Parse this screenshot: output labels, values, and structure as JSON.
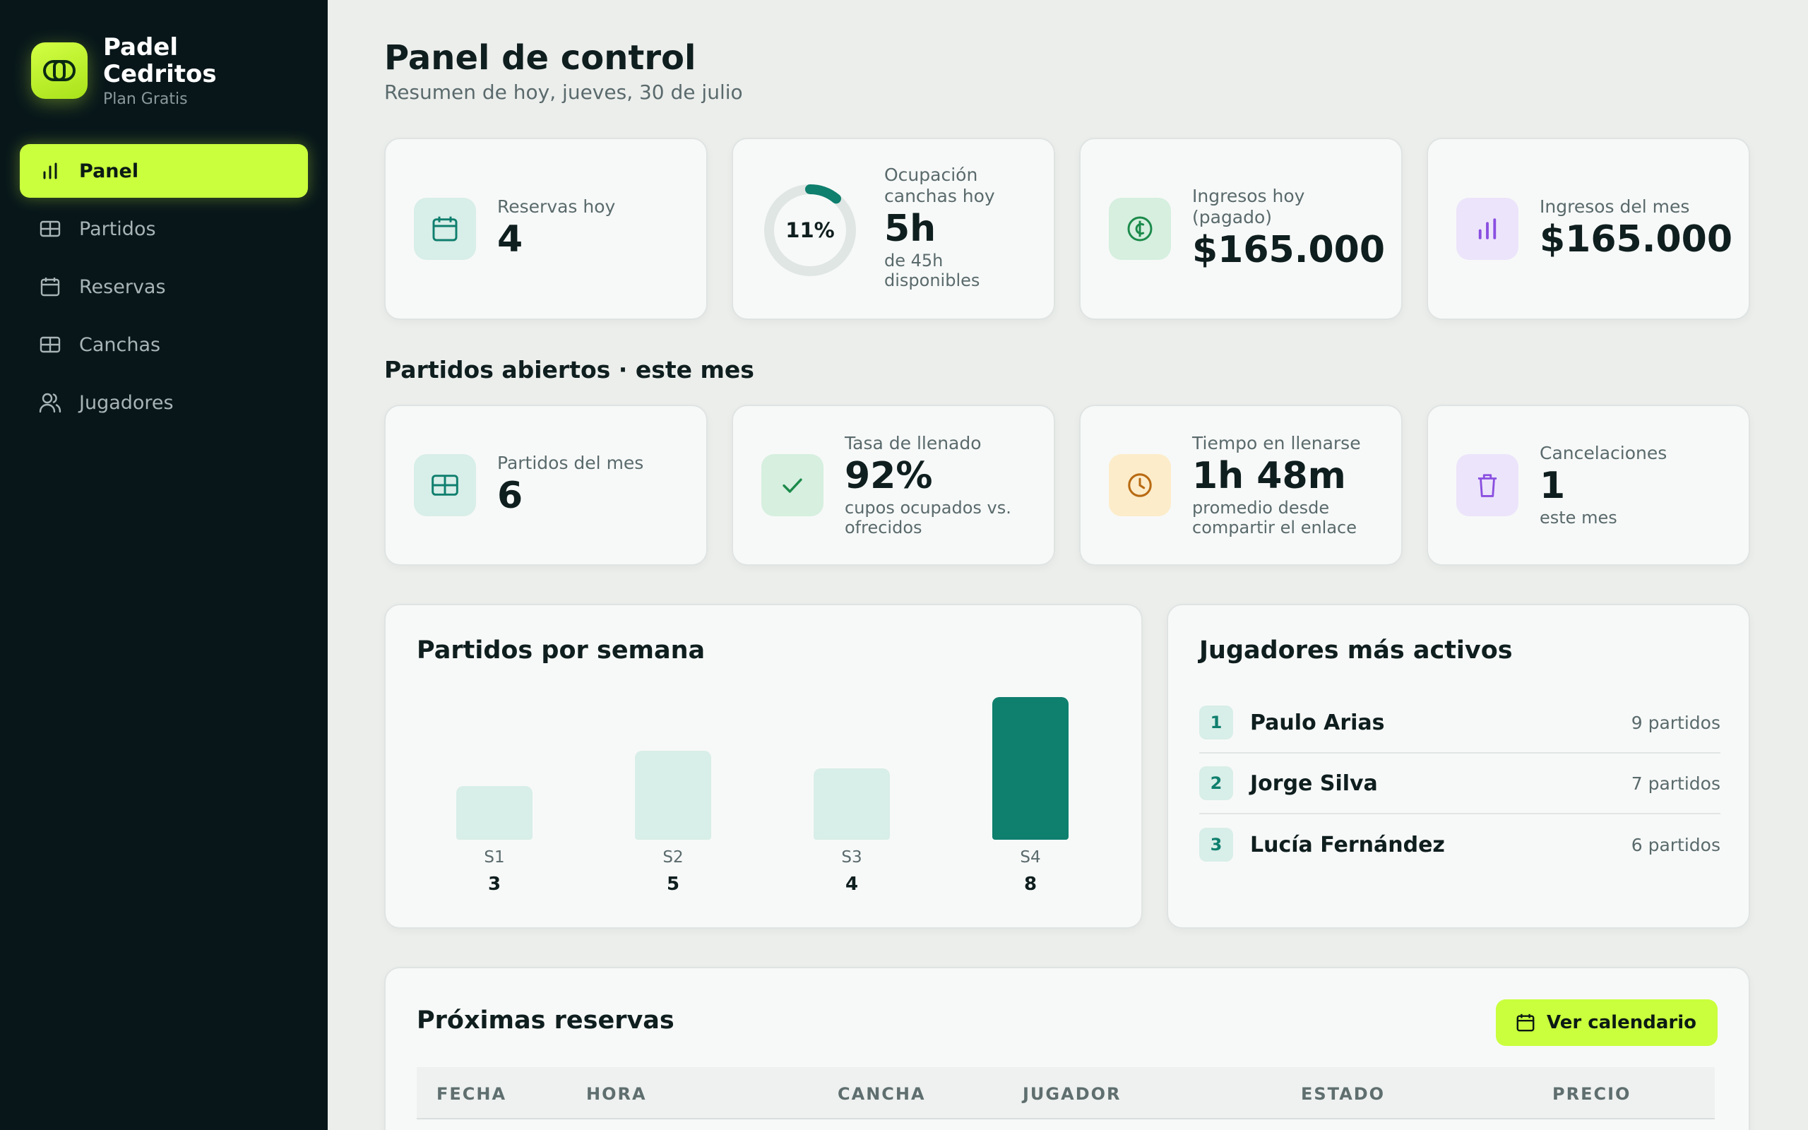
{
  "brand": {
    "name": "Padel Cedritos",
    "plan": "Plan Gratis"
  },
  "nav": [
    {
      "label": "Panel",
      "icon": "bar-chart-icon",
      "active": true
    },
    {
      "label": "Partidos",
      "icon": "court-icon"
    },
    {
      "label": "Reservas",
      "icon": "calendar-icon"
    },
    {
      "label": "Canchas",
      "icon": "court-icon"
    },
    {
      "label": "Jugadores",
      "icon": "users-icon"
    }
  ],
  "header": {
    "title": "Panel de control",
    "subtitle": "Resumen de hoy, jueves, 30 de julio"
  },
  "kpis_today": [
    {
      "label": "Reservas hoy",
      "value": "4",
      "icon": "calendar-icon"
    },
    {
      "label": "Ocupación canchas hoy",
      "value": "5h",
      "sub": "de 45h disponibles",
      "ring_percent_label": "11%",
      "ring_fraction": 0.11
    },
    {
      "label": "Ingresos hoy (pagado)",
      "value": "$165.000",
      "icon": "coin-icon"
    },
    {
      "label": "Ingresos del mes",
      "value": "$165.000",
      "icon": "bar-chart-icon"
    }
  ],
  "open_matches": {
    "title": "Partidos abiertos · este mes",
    "kpis": [
      {
        "label": "Partidos del mes",
        "value": "6",
        "icon": "court-icon"
      },
      {
        "label": "Tasa de llenado",
        "value": "92%",
        "sub": "cupos ocupados vs. ofrecidos",
        "icon": "check-icon"
      },
      {
        "label": "Tiempo en llenarse",
        "value": "1h 48m",
        "sub": "promedio desde compartir el enlace",
        "icon": "clock-icon"
      },
      {
        "label": "Cancelaciones",
        "value": "1",
        "sub": "este mes",
        "icon": "trash-icon"
      }
    ]
  },
  "weekly": {
    "title": "Partidos por semana",
    "chart_data": {
      "type": "bar",
      "categories": [
        "S1",
        "S2",
        "S3",
        "S4"
      ],
      "values": [
        3,
        5,
        4,
        8
      ],
      "ylim": [
        0,
        8
      ]
    }
  },
  "top_players": {
    "title": "Jugadores más activos",
    "items": [
      {
        "rank": "1",
        "name": "Paulo Arias",
        "count": "9 partidos"
      },
      {
        "rank": "2",
        "name": "Jorge Silva",
        "count": "7 partidos"
      },
      {
        "rank": "3",
        "name": "Lucía Fernández",
        "count": "6 partidos"
      }
    ]
  },
  "upcoming": {
    "title": "Próximas reservas",
    "button": "Ver calendario",
    "columns": [
      "FECHA",
      "HORA",
      "CANCHA",
      "JUGADOR",
      "ESTADO",
      "PRECIO"
    ]
  },
  "colors": {
    "accent": "#c9ff3d",
    "teal": "#0f7f6e",
    "sidebar": "#08161a"
  }
}
